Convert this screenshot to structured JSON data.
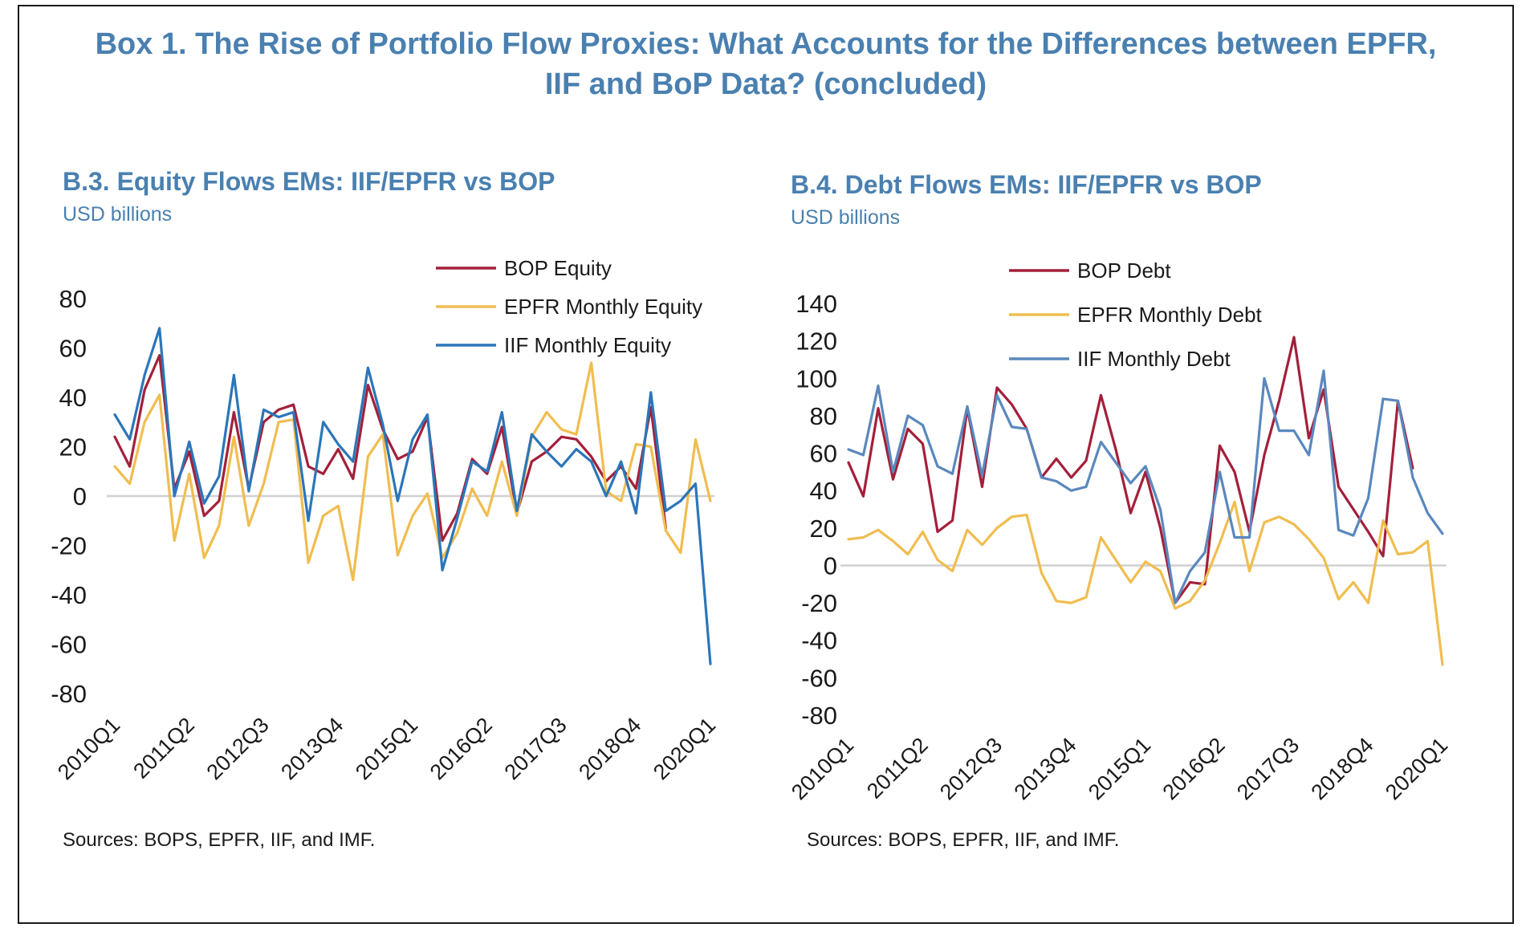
{
  "title_line1": "Box 1. The Rise of Portfolio Flow Proxies: What Accounts  for the Differences between EPFR,",
  "title_line2": "IIF and BoP Data? (concluded)",
  "chart_data": [
    {
      "type": "line",
      "title": "B.3. Equity Flows EMs: IIF/EPFR vs BOP",
      "subtitle": "USD billions",
      "source": "Sources: BOPS, EPFR, IIF, and IMF.",
      "ylim": [
        -80,
        80
      ],
      "yticks": [
        80,
        60,
        40,
        20,
        0,
        -20,
        -40,
        -60,
        -80
      ],
      "xtick_labels": [
        "2010Q1",
        "2011Q2",
        "2012Q3",
        "2013Q4",
        "2015Q1",
        "2016Q2",
        "2017Q3",
        "2018Q4",
        "2020Q1"
      ],
      "legend_position": "top-right",
      "x_count": 41,
      "series": [
        {
          "name": "BOP Equity",
          "color": "#a3203a",
          "values": [
            24,
            12,
            43,
            57,
            3,
            18,
            -8,
            -2,
            34,
            3,
            30,
            35,
            37,
            12,
            9,
            19,
            7,
            45,
            27,
            15,
            18,
            32,
            -18,
            -7,
            15,
            9,
            28,
            -7,
            14,
            18,
            24,
            23,
            16,
            6,
            12,
            3,
            36,
            -13
          ]
        },
        {
          "name": "EPFR Monthly Equity",
          "color": "#f0bd50",
          "values": [
            12,
            5,
            30,
            41,
            -18,
            9,
            -25,
            -12,
            24,
            -12,
            5,
            30,
            31,
            -27,
            -8,
            -4,
            -34,
            16,
            25,
            -24,
            -8,
            1,
            -25,
            -15,
            3,
            -8,
            14,
            -8,
            24,
            34,
            27,
            25,
            54,
            2,
            -2,
            21,
            20,
            -14,
            -23,
            23,
            -2
          ]
        },
        {
          "name": "IIF Monthly Equity",
          "color": "#2b76b9",
          "values": [
            33,
            23,
            49,
            68,
            0,
            22,
            -3,
            8,
            49,
            2,
            35,
            32,
            34,
            -10,
            30,
            21,
            14,
            52,
            29,
            -2,
            23,
            33,
            -30,
            -9,
            14,
            10,
            34,
            -6,
            25,
            18,
            12,
            19,
            14,
            0,
            14,
            -7,
            42,
            -6,
            -2,
            5,
            -68
          ]
        }
      ]
    },
    {
      "type": "line",
      "title": "B.4. Debt Flows EMs: IIF/EPFR vs BOP",
      "subtitle": "USD billions",
      "source": "Sources: BOPS, EPFR, IIF, and IMF.",
      "ylim": [
        -80,
        140
      ],
      "yticks": [
        140,
        120,
        100,
        80,
        60,
        40,
        20,
        0,
        -20,
        -40,
        -60,
        -80
      ],
      "xtick_labels": [
        "2010Q1",
        "2011Q2",
        "2012Q3",
        "2013Q4",
        "2015Q1",
        "2016Q2",
        "2017Q3",
        "2018Q4",
        "2020Q1"
      ],
      "legend_position": "top-center",
      "x_count": 41,
      "series": [
        {
          "name": "BOP Debt",
          "color": "#a3203a",
          "values": [
            55,
            37,
            84,
            46,
            73,
            65,
            18,
            24,
            84,
            42,
            95,
            86,
            73,
            47,
            57,
            47,
            56,
            91,
            62,
            28,
            50,
            20,
            -20,
            -9,
            -10,
            64,
            50,
            18,
            59,
            88,
            122,
            68,
            94,
            42,
            30,
            18,
            5,
            88,
            52
          ]
        },
        {
          "name": "EPFR Monthly Debt",
          "color": "#f0bd50",
          "values": [
            14,
            15,
            19,
            13,
            6,
            18,
            3,
            -3,
            19,
            11,
            20,
            26,
            27,
            -4,
            -19,
            -20,
            -17,
            15,
            3,
            -9,
            2,
            -3,
            -23,
            -19,
            -8,
            12,
            34,
            -3,
            23,
            26,
            22,
            14,
            4,
            -18,
            -9,
            -20,
            24,
            6,
            7,
            13,
            -53
          ]
        },
        {
          "name": "IIF Monthly Debt",
          "color": "#5a88be",
          "values": [
            62,
            59,
            96,
            50,
            80,
            75,
            53,
            49,
            85,
            48,
            91,
            74,
            73,
            47,
            45,
            40,
            42,
            66,
            55,
            44,
            53,
            30,
            -20,
            -3,
            7,
            50,
            15,
            15,
            100,
            72,
            72,
            59,
            104,
            19,
            16,
            36,
            89,
            88,
            47,
            28,
            17
          ]
        }
      ]
    }
  ]
}
